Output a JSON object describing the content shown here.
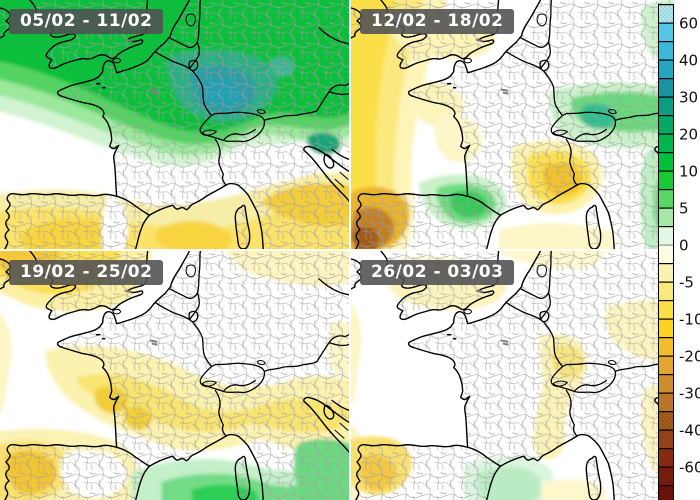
{
  "panels": [
    {
      "label": "05/02 - 11/02",
      "anomaly_pattern": "strong positive (green/teal) over UK, northern France, Benelux, Germany; negative (yellow/gold) over Spain, Mediterranean and Italy"
    },
    {
      "label": "12/02 - 18/02",
      "anomaly_pattern": "negative over Atlantic west and NW Spain (brown core); positive band over Alps/Switzerland, SW France and NE Italy; near neutral over central France"
    },
    {
      "label": "19/02 - 25/02",
      "anomaly_pattern": "negative over UK and a band across central France and the Alps; positive (green) over western Mediterranean and Italy"
    },
    {
      "label": "26/02 - 03/03",
      "anomaly_pattern": "mostly neutral; weak negative fringes west and over Jura/Alps and Italy; small positive spot near Catalonia"
    }
  ],
  "colorbar": {
    "tick_labels": [
      "60",
      "40",
      "30",
      "20",
      "10",
      "5",
      "0",
      "-5",
      "-10",
      "-20",
      "-30",
      "-40",
      "-60"
    ],
    "zero_tick_color": "#909090",
    "tick_color": "#000000",
    "segments": [
      {
        "color": "#aee9f2",
        "stipple": true
      },
      {
        "color": "#52c8e6",
        "stipple": false
      },
      {
        "color": "#3bb8da",
        "stipple": false
      },
      {
        "color": "#28a6c1",
        "stipple": false
      },
      {
        "color": "#1a93a2",
        "stipple": false
      },
      {
        "color": "#0b9d7f",
        "stipple": false
      },
      {
        "color": "#00aa62",
        "stipple": false
      },
      {
        "color": "#00b64c",
        "stipple": false
      },
      {
        "color": "#00c13a",
        "stipple": false
      },
      {
        "color": "#19ca33",
        "stipple": false
      },
      {
        "color": "#57d765",
        "stipple": false
      },
      {
        "color": "#a5e8a5",
        "stipple": false
      },
      {
        "color": "#e4f7e4",
        "stipple": false
      },
      {
        "color": "#fdfbe2",
        "stipple": false
      },
      {
        "color": "#faf2ae",
        "stipple": false
      },
      {
        "color": "#f8e87d",
        "stipple": false
      },
      {
        "color": "#fbdf45",
        "stipple": false
      },
      {
        "color": "#fcd321",
        "stipple": false
      },
      {
        "color": "#f2bd2a",
        "stipple": false
      },
      {
        "color": "#e3a52d",
        "stipple": false
      },
      {
        "color": "#cd8d2b",
        "stipple": false
      },
      {
        "color": "#b87626",
        "stipple": false
      },
      {
        "color": "#a55d1e",
        "stipple": true
      },
      {
        "color": "#97451b",
        "stipple": true
      },
      {
        "color": "#8a2d12",
        "stipple": true
      },
      {
        "color": "#7c1c0b",
        "stipple": true
      },
      {
        "color": "#6e120a",
        "stipple": true
      }
    ]
  }
}
